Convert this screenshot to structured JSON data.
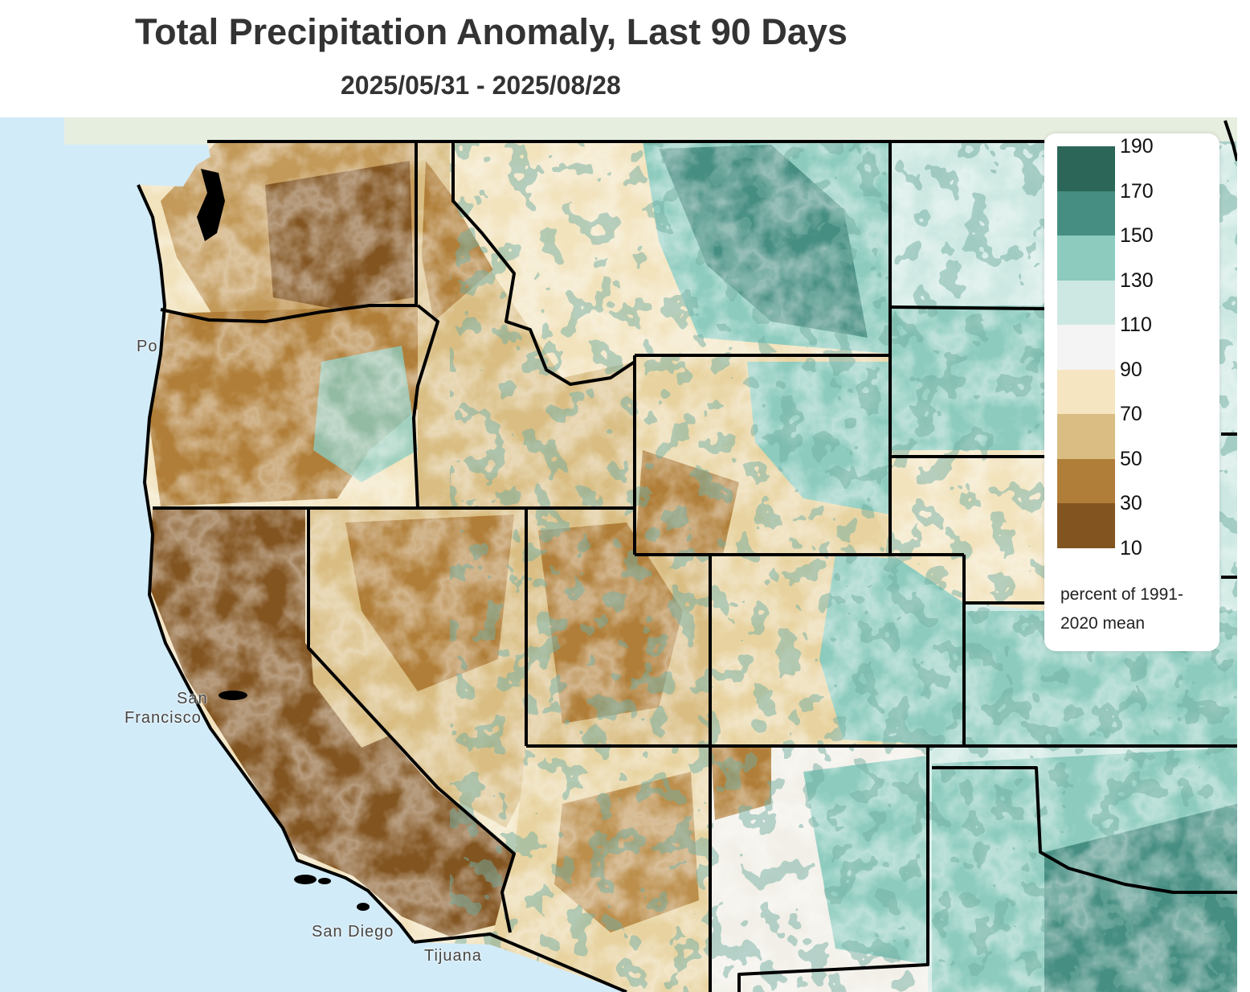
{
  "header": {
    "title": "Total Precipitation Anomaly, Last 90 Days",
    "subtitle": "2025/05/31 - 2025/08/28"
  },
  "map": {
    "place_labels": {
      "portland": "Po",
      "sf_top": "San",
      "sf_bottom": "Francisco",
      "san_diego": "San Diego",
      "tijuana": "Tijuana"
    },
    "colors": {
      "ocean": "#d2ebf8",
      "land_outside": "#e6eee0",
      "border": "#000000"
    }
  },
  "legend": {
    "ticks": [
      "190",
      "170",
      "150",
      "130",
      "110",
      "90",
      "70",
      "50",
      "30",
      "10"
    ],
    "colors": [
      "#2b6659",
      "#478e82",
      "#8ccbbe",
      "#cde8e2",
      "#f4f4f4",
      "#f5e5c0",
      "#d9bd82",
      "#b07e38",
      "#825420"
    ],
    "note": "percent of 1991-2020 mean"
  }
}
